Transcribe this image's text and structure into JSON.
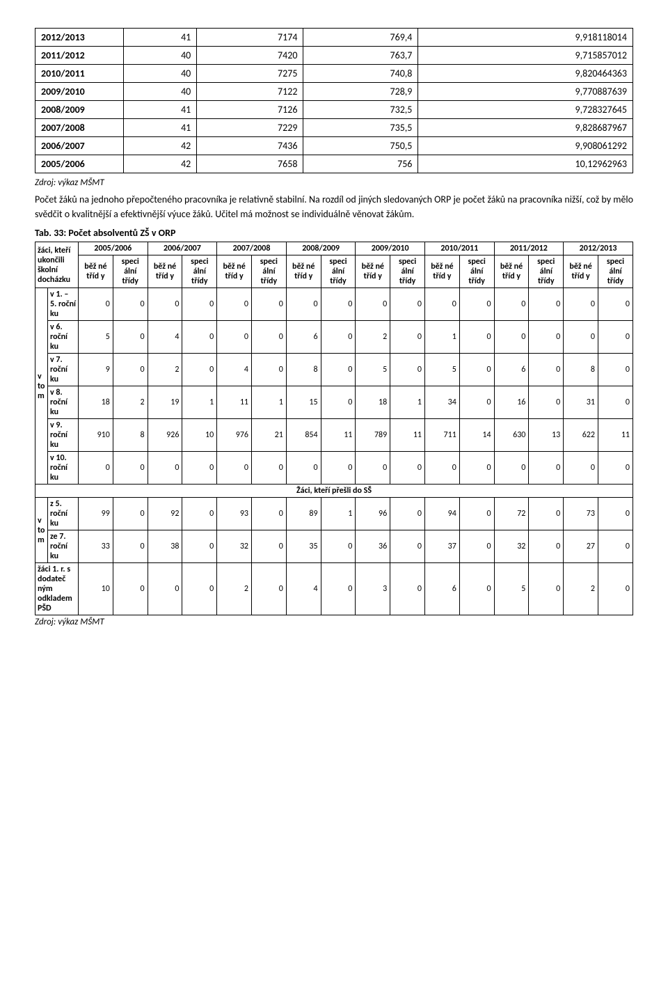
{
  "table1": {
    "rows": [
      {
        "year": "2012/2013",
        "a": "41",
        "b": "7174",
        "c": "769,4",
        "d": "9,918118014"
      },
      {
        "year": "2011/2012",
        "a": "40",
        "b": "7420",
        "c": "763,7",
        "d": "9,715857012"
      },
      {
        "year": "2010/2011",
        "a": "40",
        "b": "7275",
        "c": "740,8",
        "d": "9,820464363"
      },
      {
        "year": "2009/2010",
        "a": "40",
        "b": "7122",
        "c": "728,9",
        "d": "9,770887639"
      },
      {
        "year": "2008/2009",
        "a": "41",
        "b": "7126",
        "c": "732,5",
        "d": "9,728327645"
      },
      {
        "year": "2007/2008",
        "a": "41",
        "b": "7229",
        "c": "735,5",
        "d": "9,828687967"
      },
      {
        "year": "2006/2007",
        "a": "42",
        "b": "7436",
        "c": "750,5",
        "d": "9,908061292"
      },
      {
        "year": "2005/2006",
        "a": "42",
        "b": "7658",
        "c": "756",
        "d": "10,12962963"
      }
    ]
  },
  "source": "Zdroj: výkaz MŠMT",
  "para": "Počet žáků na jednoho přepočteného pracovníka je relativně stabilní. Na rozdíl od jiných sledovaných ORP je počet žáků na pracovníka nižší, což by mělo svědčit o kvalitnější a efektivnější výuce žáků. Učitel má možnost se individuálně věnovat žákům.",
  "tabtitle": "Tab. 33: Počet absolventů ZŠ v ORP",
  "t2": {
    "rowhead": "žáci, kteří ukončili školní docházku",
    "years": [
      "2005/2006",
      "2006/2007",
      "2007/2008",
      "2008/2009",
      "2009/2010",
      "2010/2011",
      "2011/2012",
      "2012/2013"
    ],
    "sub_bez": "běž né tříd y",
    "sub_spec": "speci ální třídy",
    "vtom": "v to m",
    "rows": [
      {
        "label": "v 1. – 5. roční ku",
        "vals": [
          "0",
          "0",
          "0",
          "0",
          "0",
          "0",
          "0",
          "0",
          "0",
          "0",
          "0",
          "0",
          "0",
          "0",
          "0",
          "0"
        ]
      },
      {
        "label": "v 6. roční ku",
        "vals": [
          "5",
          "0",
          "4",
          "0",
          "0",
          "0",
          "6",
          "0",
          "2",
          "0",
          "1",
          "0",
          "0",
          "0",
          "0",
          "0"
        ]
      },
      {
        "label": "v 7. roční ku",
        "vals": [
          "9",
          "0",
          "2",
          "0",
          "4",
          "0",
          "8",
          "0",
          "5",
          "0",
          "5",
          "0",
          "6",
          "0",
          "8",
          "0"
        ]
      },
      {
        "label": "v 8. roční ku",
        "vals": [
          "18",
          "2",
          "19",
          "1",
          "11",
          "1",
          "15",
          "0",
          "18",
          "1",
          "34",
          "0",
          "16",
          "0",
          "31",
          "0"
        ]
      },
      {
        "label": "v 9. roční ku",
        "vals": [
          "910",
          "8",
          "926",
          "10",
          "976",
          "21",
          "854",
          "11",
          "789",
          "11",
          "711",
          "14",
          "630",
          "13",
          "622",
          "11"
        ]
      },
      {
        "label": "v 10. roční ku",
        "vals": [
          "0",
          "0",
          "0",
          "0",
          "0",
          "0",
          "0",
          "0",
          "0",
          "0",
          "0",
          "0",
          "0",
          "0",
          "0",
          "0"
        ]
      }
    ],
    "section2": "Žáci, kteří přešli do SŠ",
    "rows2": [
      {
        "label": "z 5. roční ku",
        "vals": [
          "99",
          "0",
          "92",
          "0",
          "93",
          "0",
          "89",
          "1",
          "96",
          "0",
          "94",
          "0",
          "72",
          "0",
          "73",
          "0"
        ]
      },
      {
        "label": "ze 7. roční ku",
        "vals": [
          "33",
          "0",
          "38",
          "0",
          "32",
          "0",
          "35",
          "0",
          "36",
          "0",
          "37",
          "0",
          "32",
          "0",
          "27",
          "0"
        ]
      }
    ],
    "lastrow_label": "žáci 1. r. s dodateč ným odkladem PŠD",
    "lastrow_vals": [
      "10",
      "0",
      "0",
      "0",
      "2",
      "0",
      "4",
      "0",
      "3",
      "0",
      "6",
      "0",
      "5",
      "0",
      "2",
      "0"
    ]
  }
}
